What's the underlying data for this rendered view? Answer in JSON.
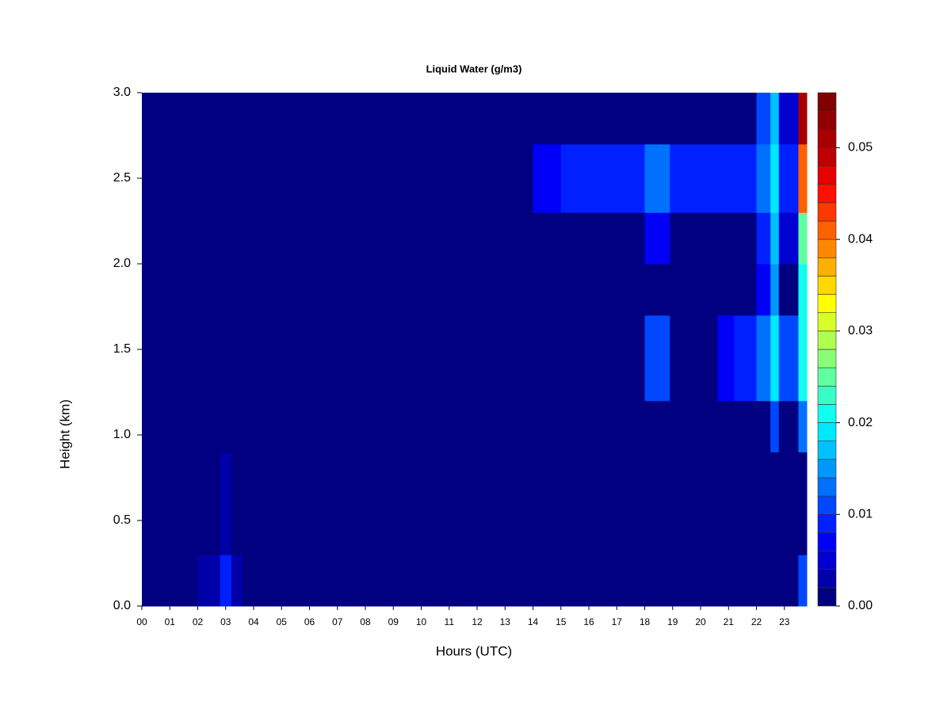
{
  "chart_data": {
    "type": "heatmap",
    "title": "Liquid Water (g/m3)",
    "x_label": "Hours (UTC)",
    "y_label": "Height (km)",
    "x_edges": [
      0,
      2,
      2.8,
      3.2,
      3.6,
      14,
      15,
      18,
      18.9,
      20.6,
      21.2,
      22,
      22.5,
      22.8,
      23.5,
      23.8
    ],
    "y_edges": [
      0,
      0.3,
      0.9,
      1.2,
      1.7,
      2.0,
      2.3,
      2.7,
      3.0
    ],
    "z": [
      [
        0,
        0.003,
        0.008,
        0.003,
        0,
        0,
        0,
        0,
        0,
        0,
        0,
        0,
        0,
        0,
        0.01
      ],
      [
        0,
        0,
        0.003,
        0,
        0,
        0,
        0,
        0,
        0,
        0,
        0,
        0,
        0,
        0,
        0
      ],
      [
        0,
        0,
        0,
        0,
        0,
        0,
        0,
        0,
        0,
        0,
        0,
        0,
        0.01,
        0,
        0.012
      ],
      [
        0,
        0,
        0,
        0,
        0,
        0,
        0,
        0.01,
        0,
        0.007,
        0.008,
        0.012,
        0.018,
        0.01,
        0.02
      ],
      [
        0,
        0,
        0,
        0,
        0,
        0,
        0,
        0,
        0,
        0,
        0,
        0.006,
        0.014,
        0,
        0.02
      ],
      [
        0,
        0,
        0,
        0,
        0,
        0,
        0,
        0.006,
        0,
        0,
        0,
        0.008,
        0.016,
        0.005,
        0.025
      ],
      [
        0,
        0,
        0,
        0,
        0,
        0.006,
        0.008,
        0.012,
        0.008,
        0.008,
        0.008,
        0.012,
        0.018,
        0.009,
        0.04
      ],
      [
        0,
        0,
        0,
        0,
        0,
        0,
        0,
        0,
        0,
        0,
        0,
        0.01,
        0.016,
        0.005,
        0.05
      ]
    ],
    "xlim": [
      0,
      23.8
    ],
    "ylim": [
      0,
      3
    ],
    "xticks": [
      {
        "value": 0,
        "label": "00"
      },
      {
        "value": 1,
        "label": "01"
      },
      {
        "value": 2,
        "label": "02"
      },
      {
        "value": 3,
        "label": "03"
      },
      {
        "value": 4,
        "label": "04"
      },
      {
        "value": 5,
        "label": "05"
      },
      {
        "value": 6,
        "label": "06"
      },
      {
        "value": 7,
        "label": "07"
      },
      {
        "value": 8,
        "label": "08"
      },
      {
        "value": 9,
        "label": "09"
      },
      10,
      11,
      12,
      13,
      14,
      15,
      16,
      17,
      18,
      19,
      20,
      21,
      22,
      23
    ],
    "yticks": [
      {
        "value": 0,
        "label": "0.0"
      },
      {
        "value": 0.5,
        "label": "0.5"
      },
      {
        "value": 1,
        "label": "1.0"
      },
      {
        "value": 1.5,
        "label": "1.5"
      },
      {
        "value": 2,
        "label": "2.0"
      },
      {
        "value": 2.5,
        "label": "2.5"
      },
      {
        "value": 3,
        "label": "3.0"
      }
    ],
    "zlim": [
      0,
      0.056
    ],
    "zticks": [
      {
        "value": 0,
        "label": "0.00"
      },
      0.01,
      0.02,
      0.03,
      0.04,
      0.05
    ],
    "colors": [
      "#000080",
      "#0000a8",
      "#0000d0",
      "#0000f8",
      "#0020ff",
      "#0048ff",
      "#0070ff",
      "#0098ff",
      "#00c0ff",
      "#00e8ff",
      "#10ffef",
      "#38ffc7",
      "#60ff9f",
      "#88ff77",
      "#b0ff4f",
      "#d8ff27",
      "#ffff00",
      "#ffd800",
      "#ffb000",
      "#ff8800",
      "#ff6000",
      "#ff3800",
      "#ff1000",
      "#e80000",
      "#c00000",
      "#a80000",
      "#900000",
      "#800000"
    ]
  }
}
